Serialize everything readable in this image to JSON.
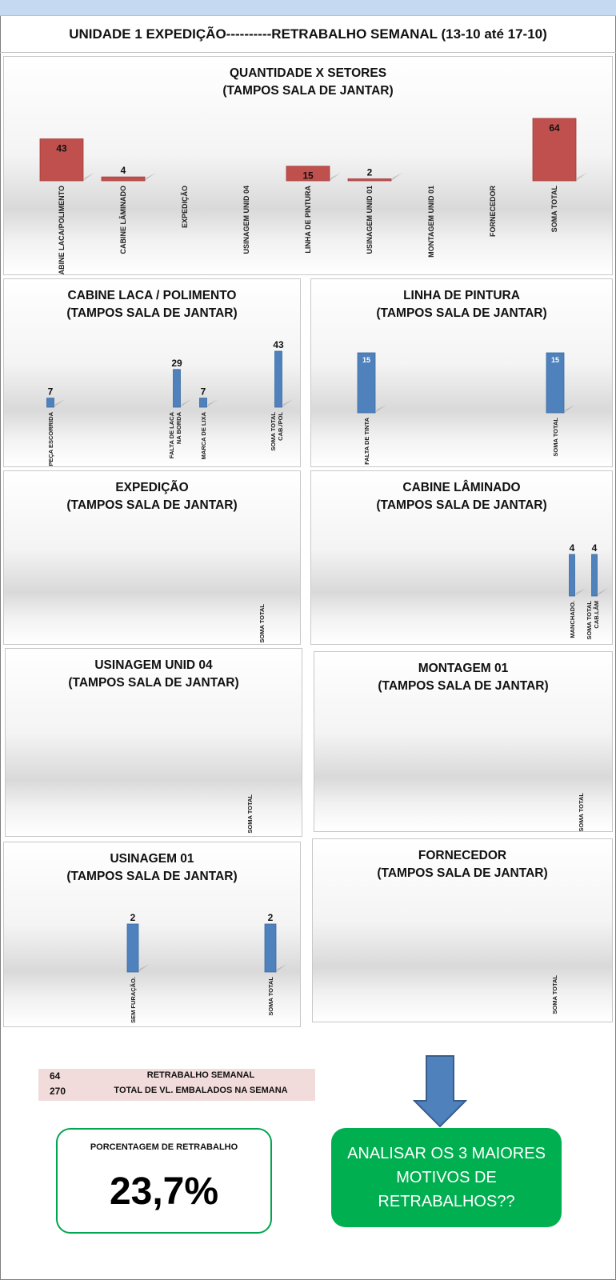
{
  "header": {
    "left": "UNIDADE 1 EXPEDIÇÃO----------",
    "right": "RETRABALHO SEMANAL (13-10 até 17-10)"
  },
  "colors": {
    "red_bar": "#c0504d",
    "blue_bar": "#4f81bd",
    "green": "#00b050",
    "summary_bg": "#f2dcdb"
  },
  "chart_data": [
    {
      "type": "bar",
      "title": "QUANTIDADE X SETORES",
      "subtitle": "(TAMPOS SALA DE JANTAR)",
      "categories": [
        "CABINE LACA/POLIMENTO",
        "CABINE LÂMINADO",
        "EXPEDIÇÃO",
        "USINAGEM UNID 04",
        "LINHA DE PINTURA",
        "USINAGEM UNID 01",
        "MONTAGEM UNID 01",
        "FORNECEDOR",
        "SOMA TOTAL"
      ],
      "values": [
        43,
        4,
        0,
        0,
        15,
        2,
        0,
        0,
        64
      ],
      "data_labels": [
        "43",
        "4",
        "",
        "",
        "15",
        "2",
        "",
        "",
        "64"
      ],
      "color": "#c0504d"
    },
    {
      "type": "bar",
      "title": "CABINE LACA / POLIMENTO",
      "subtitle": "(TAMPOS SALA DE JANTAR)",
      "categories": [
        "PEÇA ESCORRIDA",
        "FALTA DE LACA NA BORDA",
        "MARCA DE LIXA",
        "SOMA TOTAL CAB./POL"
      ],
      "values": [
        7,
        29,
        7,
        43
      ],
      "data_labels": [
        "7",
        "29",
        "7",
        "43"
      ],
      "color": "#4f81bd"
    },
    {
      "type": "bar",
      "title": "LINHA DE PINTURA",
      "subtitle": "(TAMPOS SALA DE JANTAR)",
      "categories": [
        "FALTA DE TINTA",
        "SOMA TOTAL"
      ],
      "values": [
        15,
        15
      ],
      "data_labels": [
        "15",
        "15"
      ],
      "color": "#4f81bd"
    },
    {
      "type": "bar",
      "title": "EXPEDIÇÃO",
      "subtitle": "(TAMPOS SALA DE JANTAR)",
      "categories": [
        "SOMA TOTAL"
      ],
      "values": [
        0
      ],
      "data_labels": [
        ""
      ],
      "color": "#4f81bd"
    },
    {
      "type": "bar",
      "title": "CABINE LÂMINADO",
      "subtitle": "(TAMPOS SALA DE JANTAR)",
      "categories": [
        "MANCHADO.",
        "SOMA TOTAL CAB.LÂM"
      ],
      "values": [
        4,
        4
      ],
      "data_labels": [
        "4",
        "4"
      ],
      "color": "#4f81bd"
    },
    {
      "type": "bar",
      "title": "USINAGEM UNID 04",
      "subtitle": "(TAMPOS SALA DE JANTAR)",
      "categories": [
        "SOMA TOTAL"
      ],
      "values": [
        0
      ],
      "data_labels": [
        ""
      ],
      "color": "#4f81bd"
    },
    {
      "type": "bar",
      "title": "MONTAGEM 01",
      "subtitle": "(TAMPOS SALA DE JANTAR)",
      "categories": [
        "SOMA TOTAL"
      ],
      "values": [
        0
      ],
      "data_labels": [
        ""
      ],
      "color": "#4f81bd"
    },
    {
      "type": "bar",
      "title": "USINAGEM 01",
      "subtitle": "(TAMPOS SALA DE JANTAR)",
      "categories": [
        "SEM FURAÇÃO.",
        "SOMA TOTAL"
      ],
      "values": [
        2,
        2
      ],
      "data_labels": [
        "2",
        "2"
      ],
      "color": "#4f81bd"
    },
    {
      "type": "bar",
      "title": "FORNECEDOR",
      "subtitle": "(TAMPOS SALA DE JANTAR)",
      "categories": [
        "SOMA TOTAL"
      ],
      "values": [
        0
      ],
      "data_labels": [
        ""
      ],
      "color": "#4f81bd"
    }
  ],
  "summary": {
    "rows": [
      {
        "value": "64",
        "label": "RETRABALHO SEMANAL"
      },
      {
        "value": "270",
        "label": "TOTAL DE VL. EMBALADOS NA SEMANA"
      }
    ]
  },
  "percentage": {
    "label": "PORCENTAGEM DE RETRABALHO",
    "value": "23,7%"
  },
  "action": {
    "text": "ANALISAR OS 3 MAIORES MOTIVOS DE RETRABALHOS??"
  }
}
